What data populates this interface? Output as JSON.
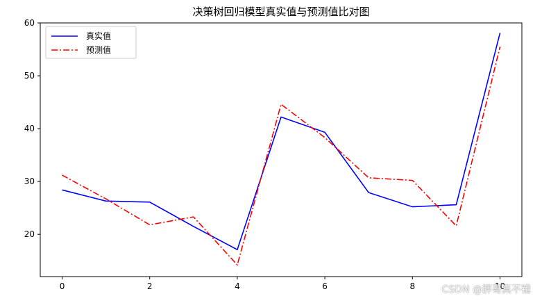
{
  "chart_data": {
    "type": "line",
    "title": "决策树回归模型真实值与预测值比对图",
    "xlabel": "",
    "ylabel": "",
    "x": [
      0,
      1,
      2,
      3,
      4,
      5,
      6,
      7,
      8,
      9,
      10
    ],
    "xticks": [
      0,
      2,
      4,
      6,
      8,
      10
    ],
    "yticks": [
      20,
      30,
      40,
      50,
      60
    ],
    "xlim": [
      -0.5,
      10.5
    ],
    "ylim": [
      12,
      60
    ],
    "grid": false,
    "legend_position": "upper-left",
    "series": [
      {
        "name": "真实值",
        "color": "#0000ff",
        "style": "solid",
        "values": [
          28.4,
          26.3,
          26.1,
          21.5,
          17.1,
          42.2,
          39.3,
          27.9,
          25.2,
          25.6,
          58.1
        ]
      },
      {
        "name": "预测值",
        "color": "#ff0000",
        "style": "dashdot",
        "values": [
          31.2,
          26.7,
          21.8,
          23.3,
          14.2,
          44.6,
          38.3,
          30.7,
          30.2,
          21.6,
          55.5
        ]
      }
    ]
  },
  "watermark": "CSDN @胖哥真不错"
}
